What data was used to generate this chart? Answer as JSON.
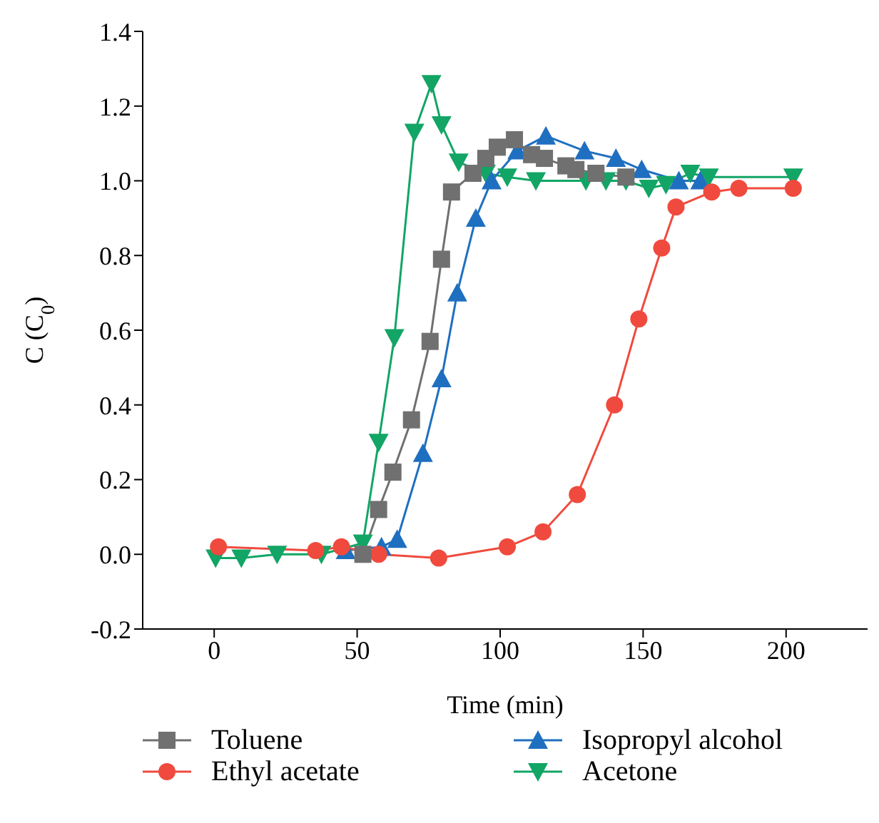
{
  "chart_data": {
    "type": "line",
    "xlabel": "Time (min)",
    "ylabel": "C (C$_{0}$)",
    "xlim": [
      -25,
      228.5
    ],
    "xticks": [
      0,
      50,
      100,
      150,
      200
    ],
    "ylim": [
      -0.2,
      1.4
    ],
    "yticks": [
      {
        "value": -0.2,
        "label": "-0.2"
      },
      {
        "value": 0,
        "label": "0.0"
      },
      {
        "value": 0.2,
        "label": "0.2"
      },
      {
        "value": 0.4,
        "label": "0.4"
      },
      {
        "value": 0.6,
        "label": "0.6"
      },
      {
        "value": 0.8,
        "label": "0.8"
      },
      {
        "value": 1,
        "label": "1.0"
      },
      {
        "value": 1.2,
        "label": "1.2"
      },
      {
        "value": 1.4,
        "label": "1.4"
      }
    ],
    "grid": false,
    "legend": "bottom",
    "line_style": "solid",
    "series": [
      {
        "name": "Toluene",
        "color": "#707070",
        "marker": "square",
        "x": [
          52,
          57.5,
          62.5,
          69,
          75.5,
          79.5,
          83,
          90.5,
          95,
          99,
          105,
          111,
          115.5,
          123,
          126.5,
          133.5,
          144
        ],
        "values": [
          0,
          0.12,
          0.22,
          0.36,
          0.57,
          0.79,
          0.97,
          1.02,
          1.06,
          1.09,
          1.11,
          1.07,
          1.06,
          1.04,
          1.03,
          1.02,
          1.01
        ]
      },
      {
        "name": "Ethyl acetate",
        "color": "#f04a3e",
        "marker": "circle",
        "x": [
          1.5,
          35.5,
          44.5,
          57.5,
          78.5,
          102.5,
          115,
          127,
          140,
          148.5,
          156.5,
          161.5,
          174,
          183.5,
          202.5
        ],
        "values": [
          0.02,
          0.01,
          0.02,
          0,
          -0.01,
          0.02,
          0.06,
          0.16,
          0.4,
          0.63,
          0.82,
          0.93,
          0.97,
          0.98,
          0.98
        ]
      },
      {
        "name": "Isopropyl alcohol",
        "color": "#1f6fc0",
        "marker": "triangle",
        "x": [
          46,
          58.5,
          64,
          73,
          79.5,
          85,
          91.5,
          97,
          106,
          116,
          129.5,
          140.5,
          149.5,
          162.5,
          170
        ],
        "values": [
          0.01,
          0.02,
          0.04,
          0.27,
          0.47,
          0.7,
          0.9,
          1.0,
          1.08,
          1.12,
          1.08,
          1.06,
          1.03,
          1.0,
          1.0
        ]
      },
      {
        "name": "Acetone",
        "color": "#12a565",
        "marker": "triangle-down",
        "x": [
          0.5,
          9.5,
          22,
          37.5,
          52,
          57.5,
          63,
          70,
          76,
          79.5,
          85.5,
          95,
          102.5,
          112.5,
          130,
          137,
          144,
          152,
          158,
          166.5,
          173,
          202.5
        ],
        "values": [
          -0.01,
          -0.01,
          0,
          0,
          0.03,
          0.3,
          0.58,
          1.13,
          1.26,
          1.15,
          1.05,
          1.02,
          1.01,
          1.0,
          1.0,
          1.0,
          1.0,
          0.98,
          0.99,
          1.02,
          1.01,
          1.01
        ]
      }
    ]
  }
}
